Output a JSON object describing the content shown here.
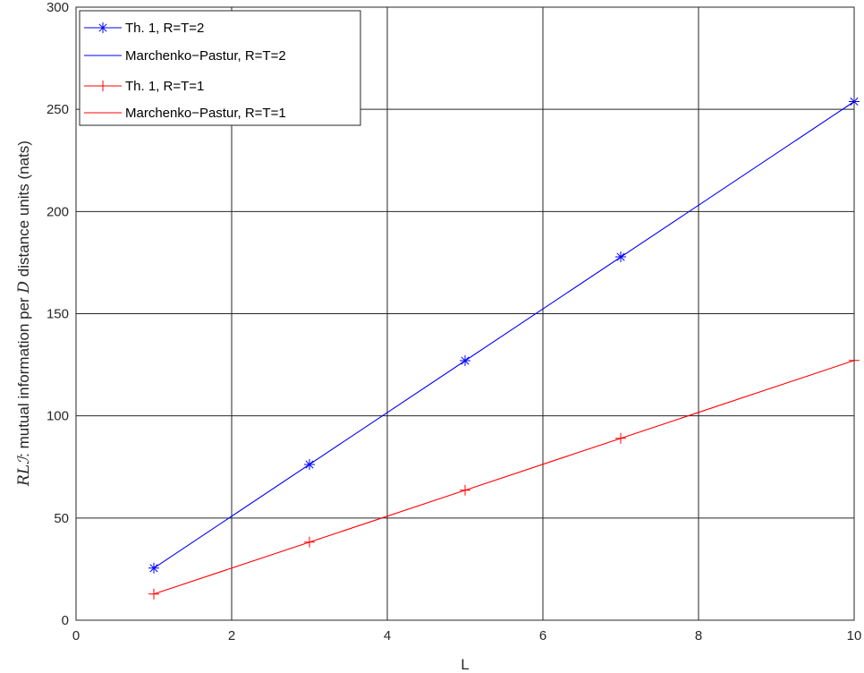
{
  "chart_data": {
    "type": "line",
    "xlabel": "L",
    "ylabel": {
      "math": "RLℐ",
      "text": ": mutual information per ",
      "math2": "D",
      "text2": " distance units (nats)"
    },
    "xlim": [
      0,
      10
    ],
    "ylim": [
      0,
      300
    ],
    "xticks": [
      0,
      2,
      4,
      6,
      8,
      10
    ],
    "yticks": [
      0,
      50,
      100,
      150,
      200,
      250,
      300
    ],
    "grid": true,
    "legend_position": "top-left",
    "series": [
      {
        "name": "Th. 1, R=T=2",
        "kind": "markers",
        "marker": "asterisk",
        "color": "#0000ff",
        "x": [
          1,
          3,
          5,
          7,
          10
        ],
        "y": [
          25.5,
          76.2,
          127.0,
          177.8,
          253.8
        ]
      },
      {
        "name": "Marchenko−Pastur, R=T=2",
        "kind": "line",
        "color": "#0000ff",
        "x": [
          1,
          10
        ],
        "y": [
          25.5,
          253.8
        ]
      },
      {
        "name": "Th. 1, R=T=1",
        "kind": "markers",
        "marker": "plus",
        "color": "#ff0000",
        "x": [
          1,
          3,
          5,
          7,
          10
        ],
        "y": [
          12.8,
          38.2,
          63.6,
          89.0,
          127.1
        ]
      },
      {
        "name": "Marchenko−Pastur, R=T=1",
        "kind": "line",
        "color": "#ff0000",
        "x": [
          1,
          10
        ],
        "y": [
          12.8,
          127.1
        ]
      }
    ]
  }
}
